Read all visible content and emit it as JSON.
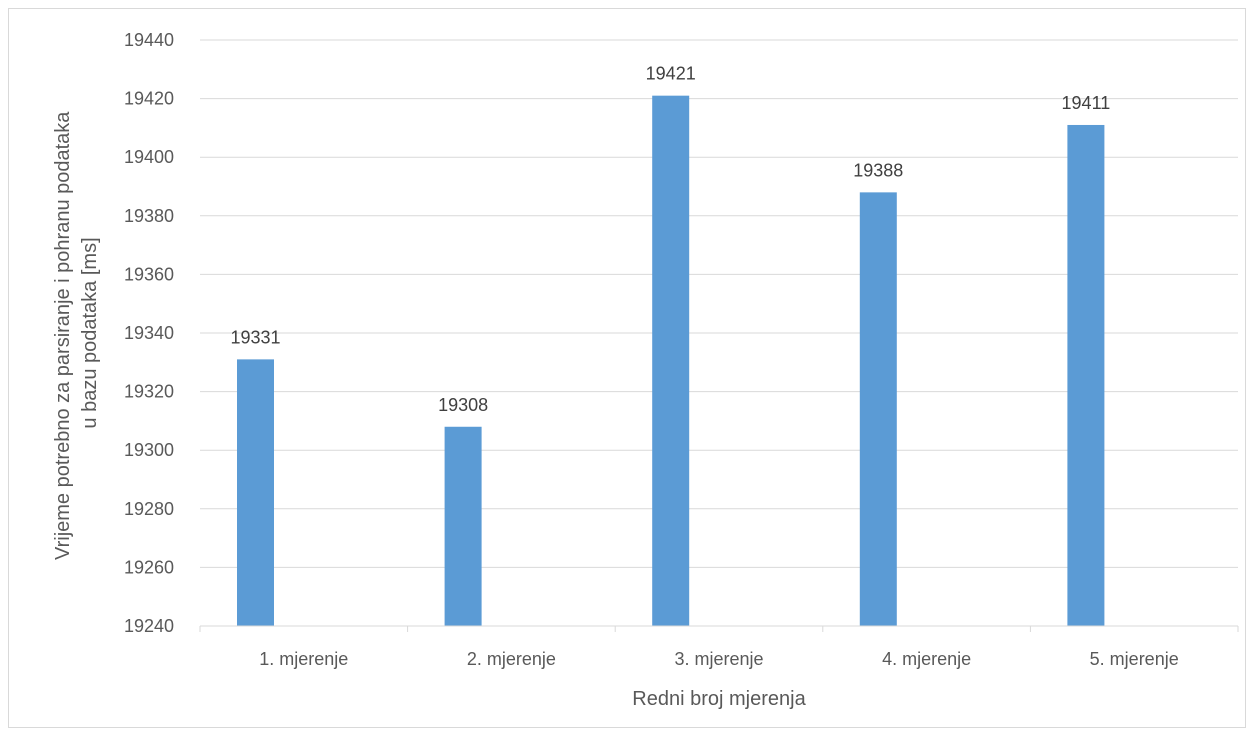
{
  "chart_data": {
    "type": "bar",
    "title": "",
    "xlabel": "Redni broj mjerenja",
    "ylabel_lines": [
      "Vrijeme potrebno za parsiranje i pohranu podataka",
      "u bazu podataka [ms]"
    ],
    "categories": [
      "1. mjerenje",
      "2. mjerenje",
      "3. mjerenje",
      "4. mjerenje",
      "5. mjerenje"
    ],
    "values": [
      19331,
      19308,
      19421,
      19388,
      19411
    ],
    "ylim": [
      19240,
      19440
    ],
    "yticks": [
      19240,
      19260,
      19280,
      19300,
      19320,
      19340,
      19360,
      19380,
      19400,
      19420,
      19440
    ],
    "grid": true,
    "legend": "none",
    "bar_color": "#5b9bd5",
    "grid_color": "#d9d9d9"
  }
}
